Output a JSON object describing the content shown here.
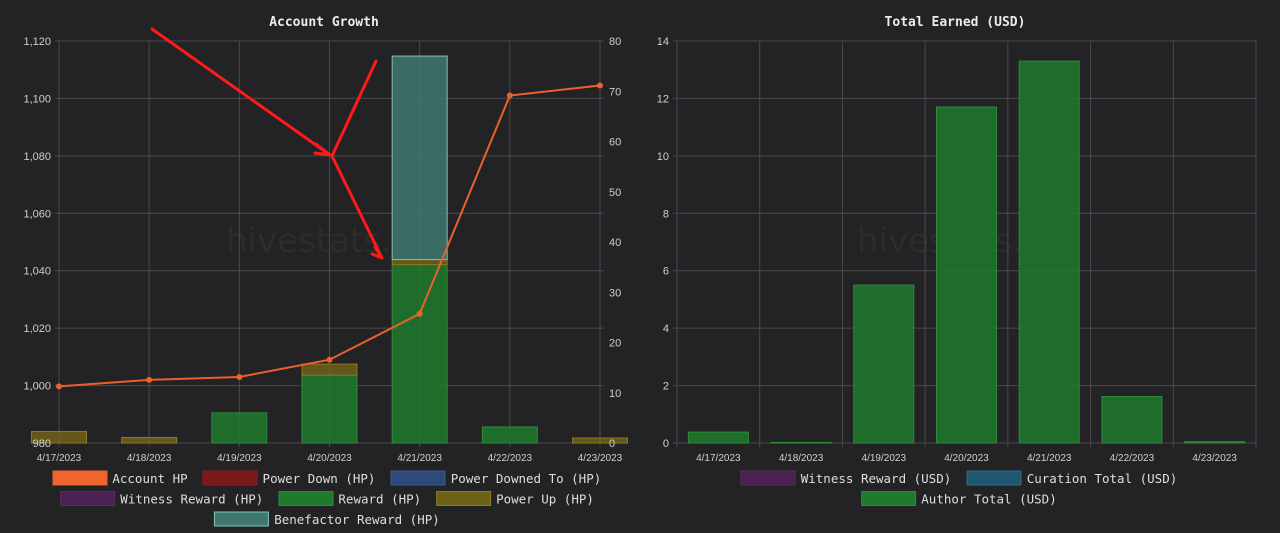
{
  "chart_data": [
    {
      "type": "bar",
      "title": "Account Growth",
      "categories": [
        "4/17/2023",
        "4/18/2023",
        "4/19/2023",
        "4/20/2023",
        "4/21/2023",
        "4/22/2023",
        "4/23/2023"
      ],
      "y_left": {
        "ylim": [
          980,
          1120
        ],
        "ticks": [
          "980",
          "1,000",
          "1,020",
          "1,040",
          "1,060",
          "1,080",
          "1,100",
          "1,120"
        ]
      },
      "y_right": {
        "ylim": [
          0,
          80
        ],
        "ticks": [
          "0",
          "10",
          "20",
          "30",
          "40",
          "50",
          "60",
          "70",
          "80"
        ]
      },
      "grid": true,
      "watermark": "hivestats.io",
      "legend_position": "bottom",
      "series": [
        {
          "name": "Account HP",
          "type": "line",
          "axis": "left",
          "color": "#e8622a",
          "fill": "#f0652d",
          "values": [
            999.7,
            1002,
            1003,
            1009,
            1025,
            1101,
            1104.5
          ]
        },
        {
          "name": "Power Down (HP)",
          "type": "bar",
          "axis": "right",
          "color": "#8b1c1c",
          "fill": "#7a1a1a",
          "values": [
            0,
            0,
            0,
            0,
            0,
            0,
            0
          ]
        },
        {
          "name": "Power Downed To (HP)",
          "type": "bar",
          "axis": "right",
          "color": "#3d5a8f",
          "fill": "#2e4a78",
          "values": [
            0,
            0,
            0,
            0,
            0,
            0,
            0
          ]
        },
        {
          "name": "Witness Reward (HP)",
          "type": "bar",
          "axis": "right",
          "color": "#5a2d5e",
          "fill": "#4a2150",
          "values": [
            0,
            0,
            0,
            0,
            0,
            0,
            0
          ]
        },
        {
          "name": "Reward (HP)",
          "type": "bar",
          "axis": "right",
          "color": "#2e8b3a",
          "fill": "#1f7a2c",
          "values": [
            0,
            0,
            6,
            13.5,
            35.5,
            3.2,
            0
          ]
        },
        {
          "name": "Power Up (HP)",
          "type": "bar",
          "axis": "right",
          "color": "#8a7a22",
          "fill": "#6e6218",
          "values": [
            2.3,
            1.1,
            0,
            2.2,
            1.0,
            0,
            1.0
          ]
        },
        {
          "name": "Benefactor Reward (HP)",
          "type": "bar",
          "axis": "right",
          "color": "#7fc4b4",
          "fill": "#3f7870",
          "values": [
            0,
            0,
            0,
            0,
            40.5,
            0,
            0
          ]
        }
      ]
    },
    {
      "type": "bar",
      "title": "Total Earned (USD)",
      "categories": [
        "4/17/2023",
        "4/18/2023",
        "4/19/2023",
        "4/20/2023",
        "4/21/2023",
        "4/22/2023",
        "4/23/2023"
      ],
      "y_left": {
        "ylim": [
          0,
          14
        ],
        "ticks": [
          "0",
          "2",
          "4",
          "6",
          "8",
          "10",
          "12",
          "14"
        ]
      },
      "grid": true,
      "watermark": "hivestats.io",
      "legend_position": "bottom",
      "series": [
        {
          "name": "Witness Reward (USD)",
          "type": "bar",
          "color": "#5a2d5e",
          "fill": "#4a2150",
          "values": [
            0,
            0,
            0,
            0,
            0,
            0,
            0
          ]
        },
        {
          "name": "Curation Total (USD)",
          "type": "bar",
          "color": "#2c6b86",
          "fill": "#1f5670",
          "values": [
            0,
            0,
            0,
            0,
            0,
            0,
            0
          ]
        },
        {
          "name": "Author Total (USD)",
          "type": "bar",
          "color": "#2e8b3a",
          "fill": "#1f7a2c",
          "values": [
            0.38,
            0.02,
            5.5,
            11.7,
            13.3,
            1.62,
            0.05
          ]
        }
      ]
    }
  ]
}
